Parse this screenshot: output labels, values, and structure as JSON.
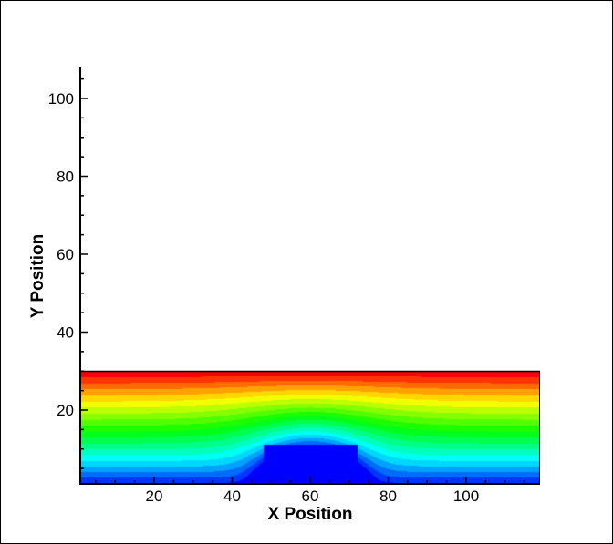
{
  "chart_data": {
    "type": "heatmap",
    "subtype": "filled-contour",
    "title": "",
    "xlabel": "X Position",
    "ylabel": "Y Position",
    "xlim": [
      1,
      119
    ],
    "ylim": [
      1,
      108
    ],
    "data_extent": {
      "x": [
        1,
        119
      ],
      "y": [
        1,
        30
      ]
    },
    "x_major_ticks": [
      20,
      40,
      60,
      80,
      100
    ],
    "y_major_ticks": [
      20,
      40,
      60,
      80,
      100
    ],
    "minor_tick_step": 5,
    "obstacle": {
      "x": [
        48,
        72
      ],
      "y": [
        0,
        11
      ]
    },
    "contour_levels": 20,
    "colormap": [
      "#0000ff",
      "#00ffff",
      "#00ff00",
      "#ffff00",
      "#ff0000"
    ],
    "description_field": "value increases from bottom (blue) to top (red), contours deflected upward over obstacle",
    "grid": false
  }
}
